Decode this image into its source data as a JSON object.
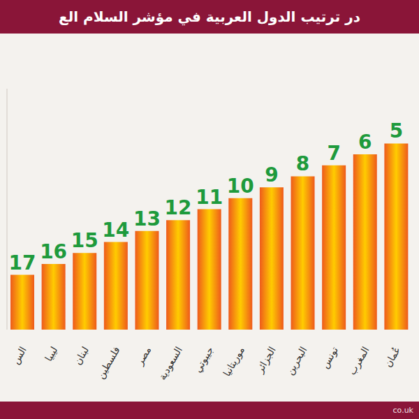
{
  "chart_data": {
    "type": "bar",
    "title": "در ترتيب الدول العربية في مؤشر السلام الع",
    "categories": [
      "الس",
      "ليبيا",
      "لبنان",
      "فلسطين",
      "مصر",
      "السعودية",
      "جيبوتي",
      "موريتانيا",
      "الجزائر",
      "البحرين",
      "تونس",
      "المغرب",
      "عُمان"
    ],
    "values": [
      17,
      16,
      15,
      14,
      13,
      12,
      11,
      10,
      9,
      8,
      7,
      6,
      5
    ],
    "color": "#ffcc00",
    "ylim": [
      22,
      0
    ],
    "data_labels": true,
    "tick_labels": "x",
    "grid": false
  },
  "footer": "co.uk"
}
